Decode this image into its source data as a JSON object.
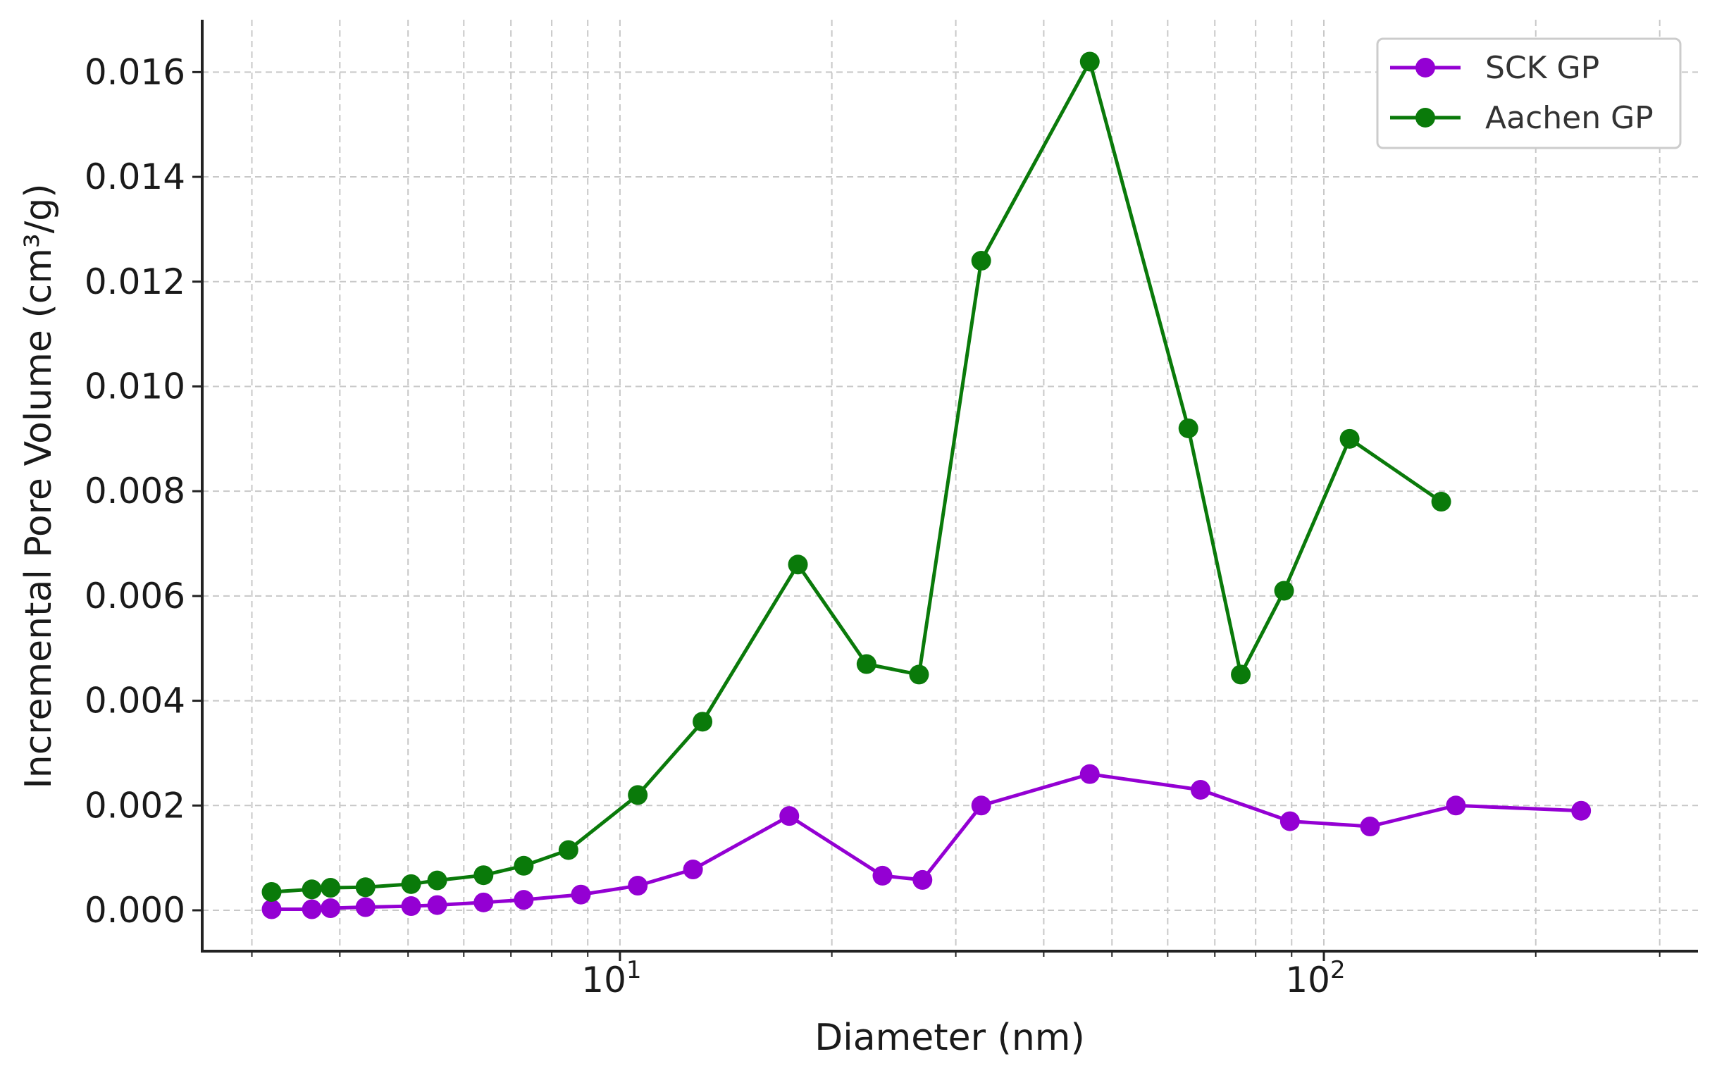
{
  "chart_data": {
    "type": "line",
    "xlabel": "Diameter (nm)",
    "ylabel": "Incremental Pore Volume (cm³/g)",
    "x_scale": "log",
    "xlim": [
      2.55,
      340
    ],
    "ylim": [
      -0.00078,
      0.017
    ],
    "x_ticks": [
      {
        "value": 10,
        "base": "10",
        "exp": "1"
      },
      {
        "value": 100,
        "base": "10",
        "exp": "2"
      }
    ],
    "y_ticks": [
      {
        "value": 0.0,
        "label": "0.000"
      },
      {
        "value": 0.002,
        "label": "0.002"
      },
      {
        "value": 0.004,
        "label": "0.004"
      },
      {
        "value": 0.006,
        "label": "0.006"
      },
      {
        "value": 0.008,
        "label": "0.008"
      },
      {
        "value": 0.01,
        "label": "0.010"
      },
      {
        "value": 0.012,
        "label": "0.012"
      },
      {
        "value": 0.014,
        "label": "0.014"
      },
      {
        "value": 0.016,
        "label": "0.016"
      }
    ],
    "grid": true,
    "legend_position": "top-right",
    "series": [
      {
        "name": "SCK GP",
        "color": "#9400d3",
        "points": [
          [
            3.2,
            2e-05
          ],
          [
            3.65,
            2e-05
          ],
          [
            3.88,
            4e-05
          ],
          [
            4.35,
            6e-05
          ],
          [
            5.05,
            8e-05
          ],
          [
            5.5,
            0.0001
          ],
          [
            6.4,
            0.00015
          ],
          [
            7.3,
            0.0002
          ],
          [
            8.8,
            0.0003
          ],
          [
            10.6,
            0.00047
          ],
          [
            12.7,
            0.00078
          ],
          [
            17.4,
            0.0018
          ],
          [
            23.6,
            0.00066
          ],
          [
            26.9,
            0.00058
          ],
          [
            32.6,
            0.002
          ],
          [
            46.5,
            0.0026
          ],
          [
            66.8,
            0.0023
          ],
          [
            89.5,
            0.0017
          ],
          [
            116.3,
            0.0016
          ],
          [
            154,
            0.002
          ],
          [
            232,
            0.0019
          ]
        ]
      },
      {
        "name": "Aachen GP",
        "color": "#0a7a0a",
        "points": [
          [
            3.2,
            0.00035
          ],
          [
            3.65,
            0.0004
          ],
          [
            3.88,
            0.00043
          ],
          [
            4.35,
            0.00044
          ],
          [
            5.05,
            0.0005
          ],
          [
            5.5,
            0.00057
          ],
          [
            6.4,
            0.00067
          ],
          [
            7.3,
            0.00085
          ],
          [
            8.45,
            0.00115
          ],
          [
            10.6,
            0.0022
          ],
          [
            13.1,
            0.0036
          ],
          [
            17.9,
            0.0066
          ],
          [
            22.4,
            0.0047
          ],
          [
            26.6,
            0.0045
          ],
          [
            32.6,
            0.0124
          ],
          [
            46.5,
            0.0162
          ],
          [
            64.2,
            0.0092
          ],
          [
            76.2,
            0.0045
          ],
          [
            87.8,
            0.0061
          ],
          [
            108.8,
            0.009
          ],
          [
            146.8,
            0.0078
          ]
        ]
      }
    ]
  }
}
